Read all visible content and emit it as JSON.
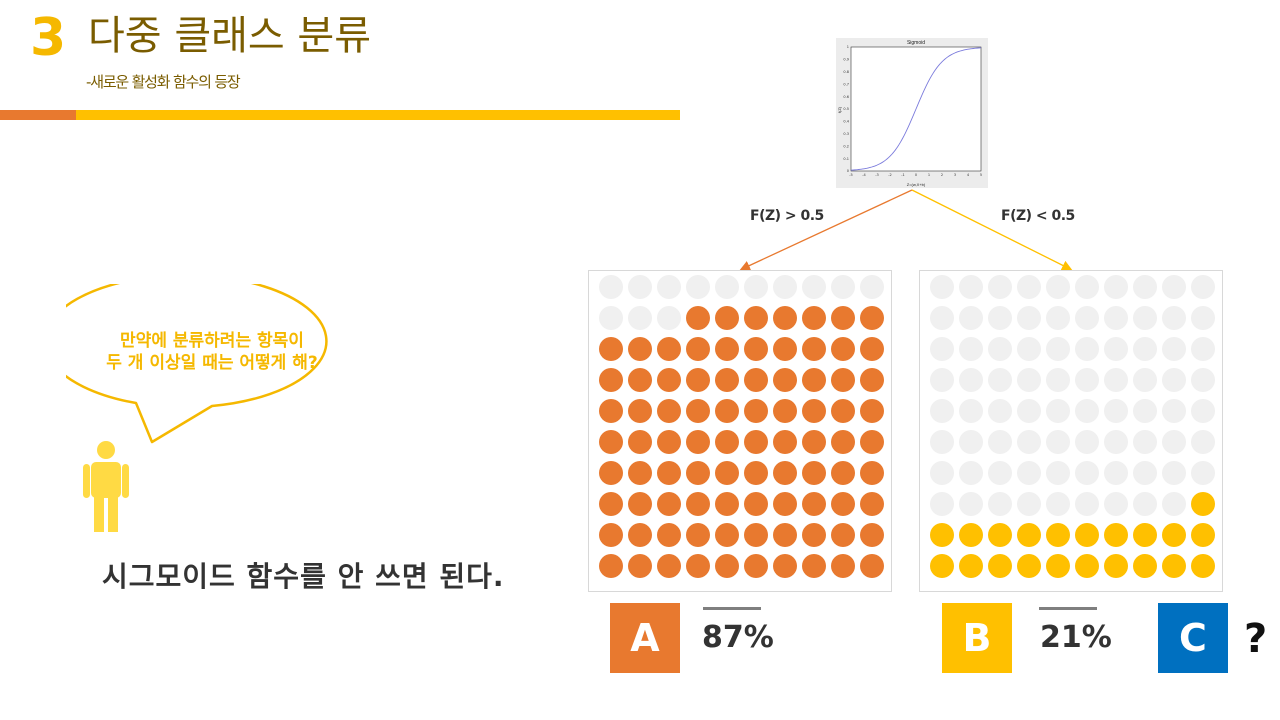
{
  "header": {
    "section_number": "3",
    "title": "다중 클래스 분류",
    "subtitle": "-새로운 활성화 함수의 등장"
  },
  "sigmoid_plot": {
    "title": "Sigmoid",
    "xlabel": "Z=(w,X+b)",
    "ylabel": "f(Z)",
    "x_ticks": [
      "-5",
      "-4",
      "-3",
      "-2",
      "-1",
      "0",
      "1",
      "2",
      "3",
      "4",
      "5"
    ],
    "y_ticks": [
      "0",
      "0.1",
      "0.2",
      "0.3",
      "0.4",
      "0.5",
      "0.6",
      "0.7",
      "0.8",
      "0.9",
      "1"
    ],
    "xlim": [
      -5,
      5
    ],
    "ylim": [
      0,
      1
    ]
  },
  "branches": {
    "gt_label": "F(Z) > 0.5",
    "lt_label": "F(Z) < 0.5",
    "gt_color": "#E8792F",
    "lt_color": "#FFC000"
  },
  "grid_a": {
    "filled": 87,
    "total": 100,
    "fill_color": "#E8792F",
    "empty_color": "#F0F0F0"
  },
  "grid_b": {
    "filled": 21,
    "total": 100,
    "fill_color": "#FFC000",
    "empty_color": "#F0F0F0"
  },
  "speech_bubble": {
    "line1": "만약에 분류하려는 항목이",
    "line2": "두 개 이상일 때는 어떻게 해?"
  },
  "answer_text": "시그모이드 함수를 안 쓰면 된다.",
  "classes": [
    {
      "label": "A",
      "percent": "87%",
      "color": "#E8792F"
    },
    {
      "label": "B",
      "percent": "21%",
      "color": "#FFC000"
    },
    {
      "label": "C",
      "suffix": "?",
      "color": "#0070C0"
    }
  ],
  "colors": {
    "accent_orange": "#E8792F",
    "accent_yellow": "#FFC000",
    "accent_blue": "#0070C0",
    "title_brown": "#7A5C00",
    "person_yellow": "#FFDA44"
  }
}
